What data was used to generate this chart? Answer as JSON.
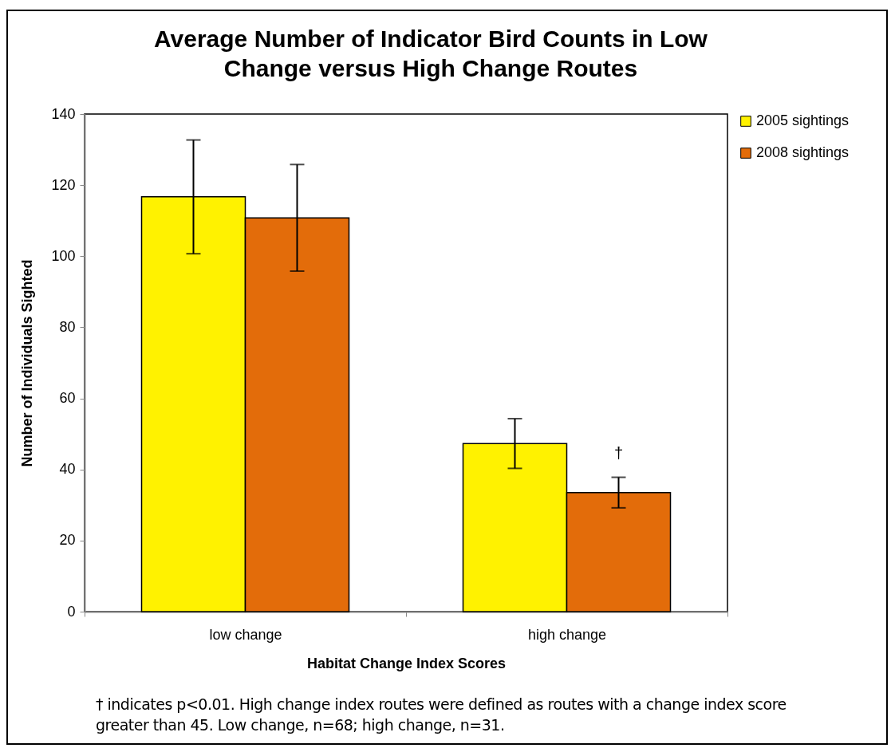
{
  "chart_data": {
    "type": "bar",
    "title": "Average Number of Indicator Bird Counts in Low Change versus High Change Routes",
    "xlabel": "Habitat Change Index Scores",
    "ylabel": "Number of Individuals Sighted",
    "categories": [
      "low change",
      "high change"
    ],
    "series": [
      {
        "name": "2005 sightings",
        "color": "#fff200",
        "values": [
          116.7,
          47.3
        ],
        "errors": [
          16,
          7
        ]
      },
      {
        "name": "2008 sightings",
        "color": "#e36c0a",
        "values": [
          110.8,
          33.5
        ],
        "errors": [
          15,
          4.3
        ]
      }
    ],
    "ylim": [
      0,
      140
    ],
    "yticks": [
      0,
      20,
      40,
      60,
      80,
      100,
      120,
      140
    ],
    "grid": false,
    "legend": "right",
    "annotations": [
      {
        "text": "†",
        "x": "high change",
        "y": 44.5
      },
      "† indicates p<0.01. High change index routes were defined as routes with a change index score greater than 45.  Low change, n=68; high change, n=31."
    ]
  }
}
